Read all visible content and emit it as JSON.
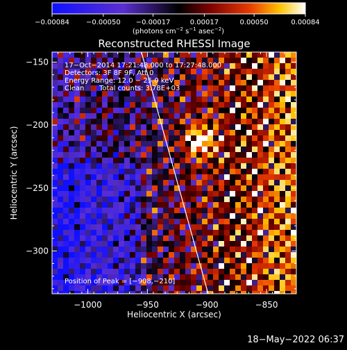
{
  "chart_data": {
    "type": "heatmap",
    "title": "Reconstructed RHESSI Image",
    "xlabel": "Heliocentric X (arcsec)",
    "ylabel": "Heliocentric Y (arcsec)",
    "xlim": [
      -1030,
      -825
    ],
    "ylim": [
      -334,
      -142
    ],
    "xticks": [
      -1000,
      -950,
      -900,
      -850
    ],
    "xtick_labels": [
      "−1000",
      "−950",
      "−900",
      "−850"
    ],
    "yticks": [
      -150,
      -200,
      -250,
      -300
    ],
    "ytick_labels": [
      "−150",
      "−200",
      "−250",
      "−300"
    ],
    "colorbar": {
      "range": [
        -0.00084,
        0.00084
      ],
      "ticks": [
        -0.00084,
        -0.0005,
        -0.00017,
        0.00017,
        0.0005,
        0.00084
      ],
      "tick_labels": [
        "−0.00084",
        "−0.00050",
        "−0.00017",
        "0.00017",
        "0.00050",
        "0.00084"
      ],
      "unit_parts": [
        "(photons cm",
        "−2",
        " s",
        "−1",
        " asec",
        "−2",
        ")"
      ]
    },
    "annotations": [
      "17−Oct−2014 17:21:48.000 to 17:27:48.000",
      "Detectors: 3F 8F 9F, Att 0",
      "Energy Range: 12.0 − 25.0 keV",
      "Clean",
      "Total counts: 3.78E+03"
    ],
    "peak_label": "Position of Peak = [−908,−210]",
    "peak": [
      -908,
      -210
    ],
    "limb_line": [
      [
        -955,
        -142
      ],
      [
        -899,
        -334
      ]
    ],
    "timestamp": "18−May−2022 06:37",
    "colors": {
      "negative_min": "#0000ff",
      "zero": "#000000",
      "positive_max": "#ffffff"
    }
  }
}
